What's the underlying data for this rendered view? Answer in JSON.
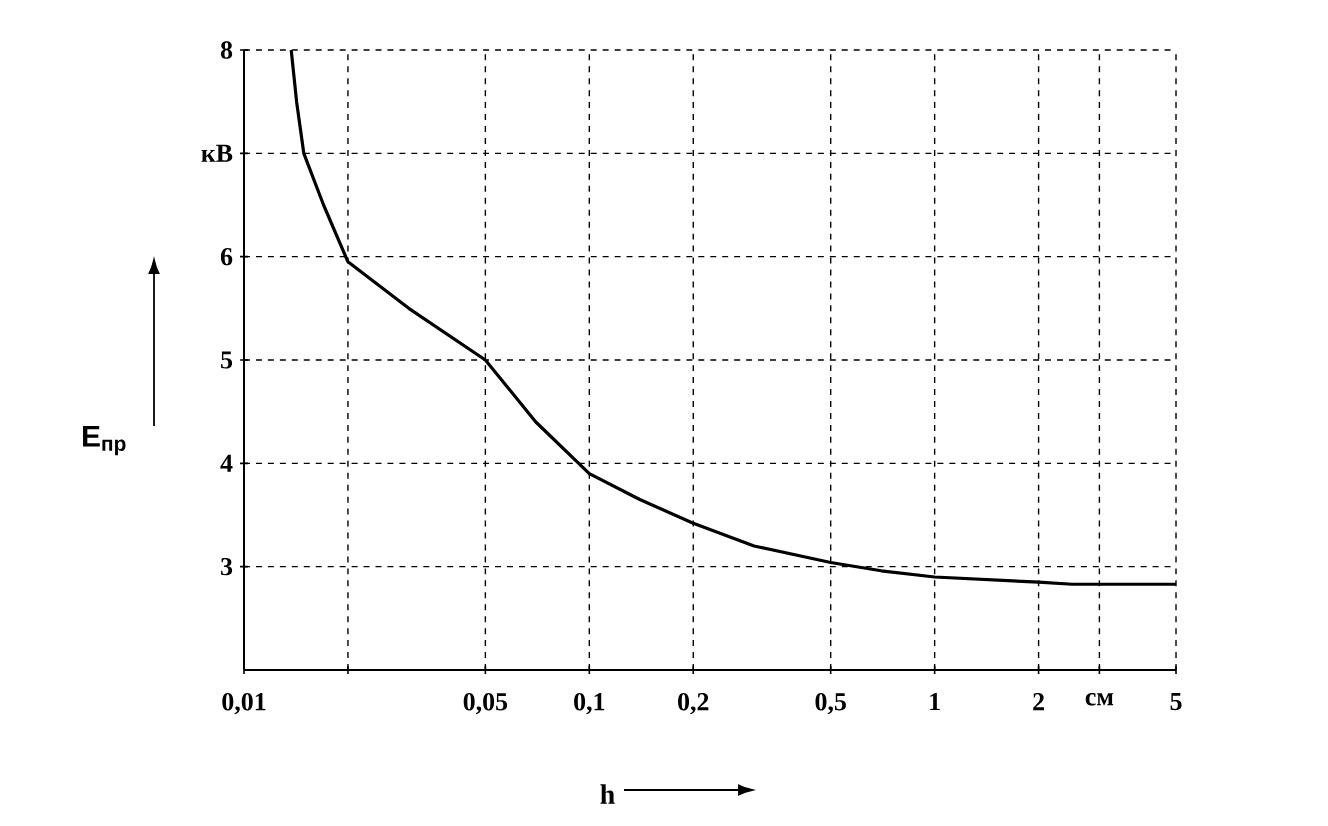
{
  "chart_data": {
    "type": "line",
    "xlabel": "h",
    "ylabel": "E$_{пр}$",
    "x": [
      0.0137,
      0.0142,
      0.0149,
      0.017,
      0.02,
      0.03,
      0.05,
      0.07,
      0.1,
      0.14,
      0.2,
      0.3,
      0.5,
      0.7,
      1,
      2,
      2.5,
      3,
      5
    ],
    "values": [
      8,
      7.5,
      7.0,
      6.5,
      5.95,
      5.5,
      5.0,
      4.4,
      3.9,
      3.65,
      3.42,
      3.2,
      3.04,
      2.96,
      2.9,
      2.85,
      2.83,
      2.83,
      2.83
    ],
    "color": "#000000",
    "line_style": "solid",
    "log": "x",
    "grid": true,
    "xlim": [
      0.01,
      5
    ],
    "ylim": [
      2,
      8
    ],
    "xticks": [
      {
        "value": 0.01,
        "label": "0,01"
      },
      {
        "value": 0.02,
        "label": null
      },
      {
        "value": 0.05,
        "label": "0,05"
      },
      {
        "value": 0.1,
        "label": "0,1"
      },
      {
        "value": 0.2,
        "label": "0,2"
      },
      {
        "value": 0.5,
        "label": "0,5"
      },
      1,
      2,
      {
        "value": 3,
        "label": "см"
      },
      5
    ],
    "yticks": [
      3,
      4,
      5,
      6,
      {
        "value": 7,
        "label": "кВ"
      },
      8
    ]
  }
}
